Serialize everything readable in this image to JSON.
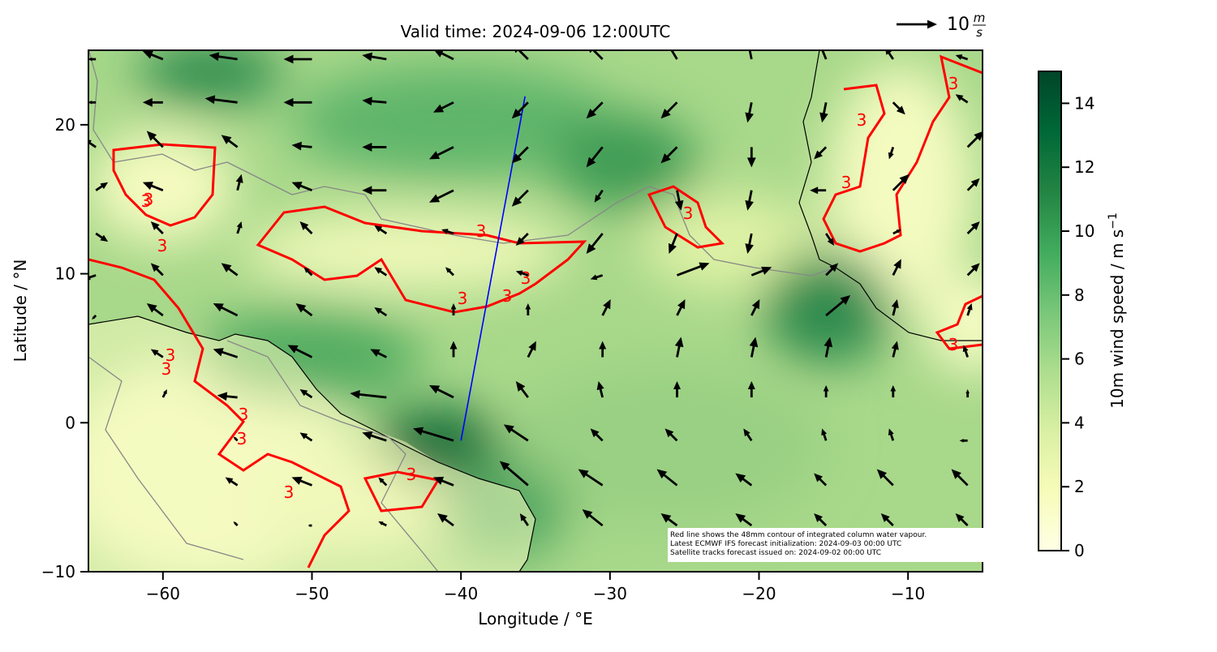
{
  "chart_data": {
    "type": "quiver_map",
    "title": "Valid time: 2024-09-06 12:00UTC",
    "x_label": "Longitude / °E",
    "y_label": "Latitude / °N",
    "xlim": [
      -65,
      -5
    ],
    "ylim": [
      -10,
      25
    ],
    "xticks": [
      {
        "value": -60,
        "label": "−60"
      },
      {
        "value": -50,
        "label": "−50"
      },
      {
        "value": -40,
        "label": "−40"
      },
      {
        "value": -30,
        "label": "−30"
      },
      {
        "value": -20,
        "label": "−20"
      },
      {
        "value": -10,
        "label": "−10"
      }
    ],
    "yticks": [
      {
        "value": -10,
        "label": "−10"
      },
      0,
      10,
      20
    ],
    "colorbar": {
      "label": "10m wind speed / m s",
      "label_superscript": "−1",
      "lim": [
        0,
        15
      ],
      "ticks": [
        0,
        2,
        4,
        6,
        8,
        10,
        12,
        14
      ]
    },
    "quiver_key": {
      "value": 10,
      "numerator": "m",
      "denominator": "s"
    },
    "contour_label": "3",
    "track": {
      "color": "#0000ff",
      "lon": [
        -40,
        -35.7
      ],
      "lat": [
        -1.2,
        21.9
      ]
    },
    "notes": [
      "Red line shows the 48mm contour of integrated column water vapour.",
      "Latest ECMWF IFS forecast initialization: 2024-09-03 00:00 UTC",
      "Satellite tracks forecast issued on: 2024-09-02 00:00 UTC"
    ],
    "wind": {
      "lons": [
        -64.5,
        -60,
        -55,
        -50,
        -45,
        -40.5,
        -35.5,
        -30.5,
        -25.5,
        -20.5,
        -15.5,
        -11,
        -6
      ],
      "lats": [
        24.4,
        21.5,
        18.5,
        15.6,
        12.7,
        9.9,
        7.2,
        4.4,
        1.7,
        -1.2,
        -4.2,
        -6.9
      ],
      "u": [
        [
          -2,
          -5,
          -7,
          -7,
          -6,
          -5,
          -4,
          -4,
          -3,
          -1,
          -2,
          -2,
          -3
        ],
        [
          -2,
          -5,
          -8,
          -7,
          -6,
          -5,
          -4,
          -4,
          -4,
          -1,
          -1,
          3,
          -3
        ],
        [
          -3,
          -4,
          -4,
          -5,
          -6,
          -6,
          -4,
          -4,
          -4,
          0,
          -3,
          -1,
          4
        ],
        [
          3,
          -5,
          1,
          -5,
          -6,
          -6,
          -4,
          -2,
          1,
          -1,
          -4,
          4,
          3
        ],
        [
          3,
          -3,
          1,
          -3,
          -3,
          -3,
          -3,
          -4,
          -2,
          -1,
          2,
          2,
          3
        ],
        [
          -3,
          -3,
          -4,
          -2,
          -3,
          -2,
          -3,
          -3,
          8,
          5,
          3,
          2,
          3
        ],
        [
          -1,
          -4,
          -6,
          -4,
          -3,
          0,
          0,
          2,
          2,
          2,
          6,
          1,
          1
        ],
        [
          0,
          -3,
          -6,
          -6,
          -4,
          0,
          2,
          0,
          1,
          1,
          1,
          1,
          -1
        ],
        [
          0,
          1,
          -5,
          -3,
          -9,
          -6,
          -3,
          -1,
          0,
          0,
          0,
          0,
          0
        ],
        [
          0,
          0,
          -1,
          -3,
          -6,
          -10,
          -6,
          -3,
          -3,
          -2,
          -1,
          -1,
          -2
        ],
        [
          0,
          0,
          -3,
          -5,
          -2,
          -5,
          -7,
          -6,
          -5,
          -4,
          -3,
          -4,
          -4
        ],
        [
          0,
          0,
          -1,
          -1,
          -2,
          -4,
          -2,
          -5,
          -4,
          -4,
          -3,
          -3,
          -3
        ]
      ],
      "v": [
        [
          0,
          2,
          1,
          0,
          1,
          2.5,
          4,
          4,
          5,
          5,
          5,
          3,
          1
        ],
        [
          0,
          0,
          1,
          0,
          0.5,
          -2.5,
          -4,
          -4,
          -4,
          -5,
          -5,
          -3,
          2
        ],
        [
          2,
          4,
          3,
          0.5,
          0,
          -3,
          -4,
          -5,
          -4,
          -5,
          -3,
          -3,
          4
        ],
        [
          2,
          2,
          4,
          2,
          0,
          -3,
          -4,
          -3,
          -5,
          -5,
          0,
          4,
          3
        ],
        [
          -2,
          3,
          3,
          3,
          2,
          1,
          -3,
          -5,
          -5,
          -5,
          -3,
          1,
          3
        ],
        [
          -1,
          3,
          3,
          2,
          2,
          2,
          1,
          -1,
          3,
          2,
          3,
          4,
          3
        ],
        [
          -1,
          3,
          3,
          3,
          2,
          3,
          3,
          4,
          4,
          4,
          5,
          4,
          3
        ],
        [
          0,
          2,
          2,
          3,
          2,
          4,
          4,
          4,
          5,
          5,
          5,
          4,
          3
        ],
        [
          0,
          2,
          0.5,
          2,
          1,
          3,
          4,
          4,
          4,
          4,
          3,
          3,
          2
        ],
        [
          0,
          0,
          1,
          2,
          2,
          3,
          4,
          3,
          3,
          3,
          3,
          3,
          0
        ],
        [
          0,
          0,
          2,
          2,
          2,
          2,
          6,
          4,
          4,
          3,
          3,
          4,
          4
        ],
        [
          0,
          0,
          1,
          0,
          1,
          3,
          3,
          4,
          3,
          3,
          3,
          3,
          3
        ]
      ]
    }
  }
}
